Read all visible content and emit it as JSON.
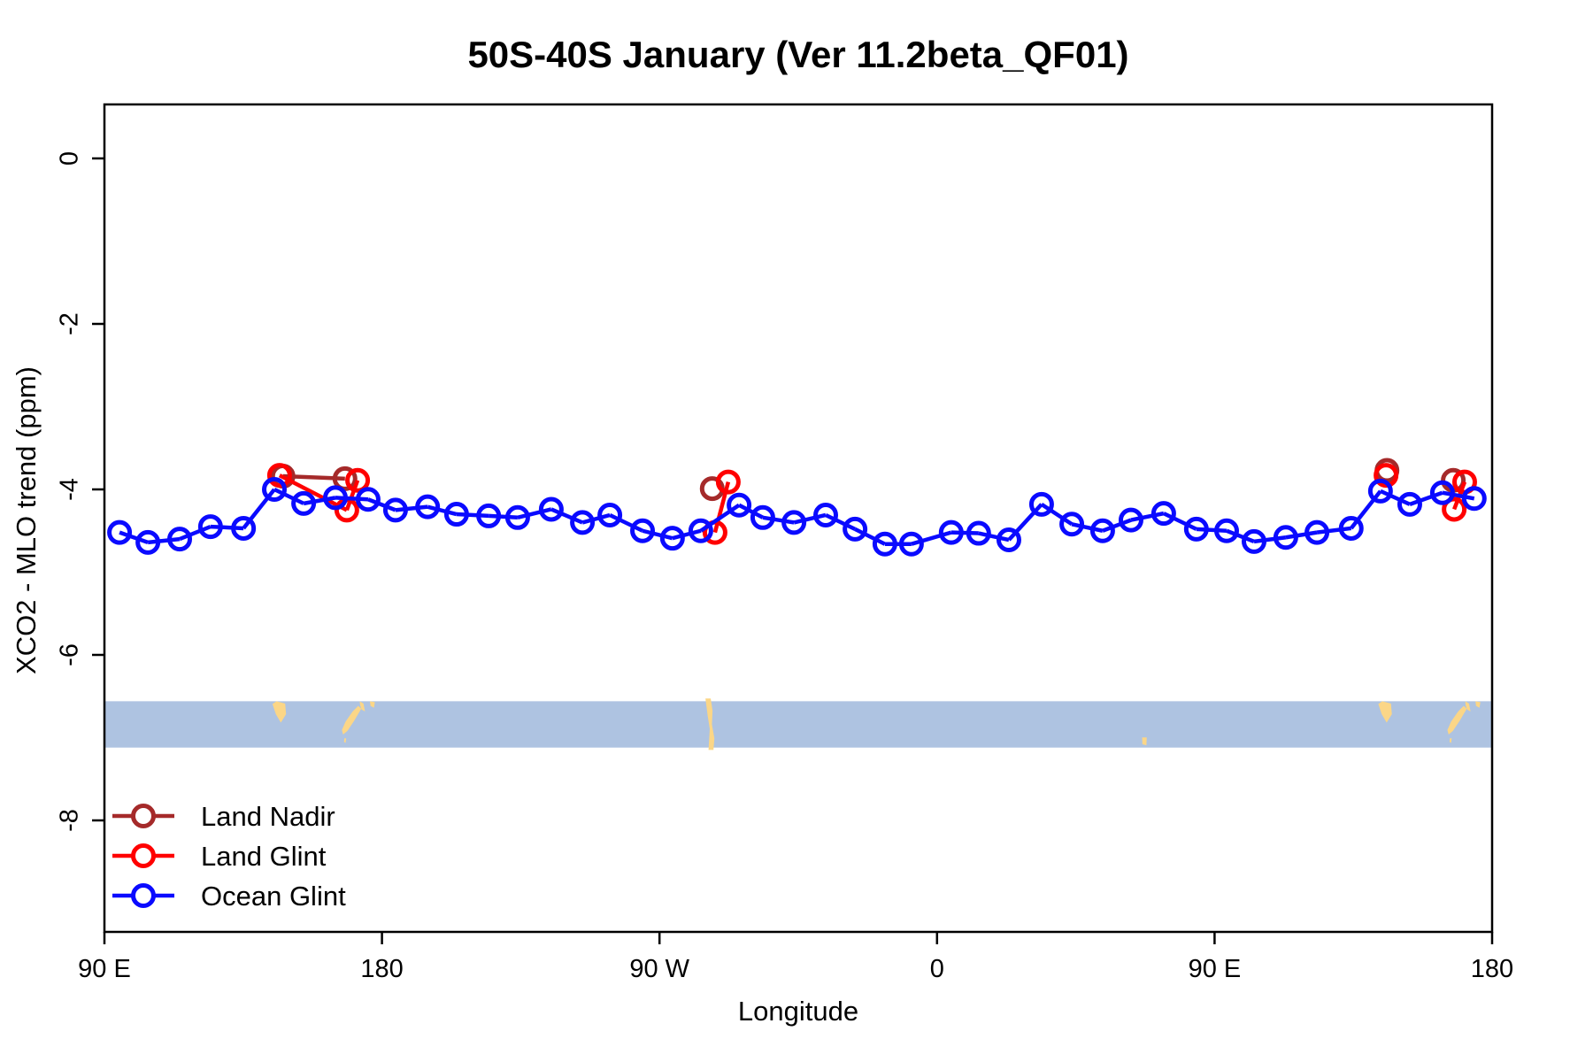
{
  "title": "50S-40S January (Ver 11.2beta_QF01)",
  "axis_labels": {
    "y": "XCO2 - MLO trend (ppm)",
    "x": "Longitude"
  },
  "colors": {
    "land_nadir": "#A52A2A",
    "land_glint": "#FF0000",
    "ocean_glint": "#0A0AFF",
    "map_sea": "#AEC3E1",
    "map_land": "#FBD687",
    "axis": "#000000"
  },
  "legend": [
    {
      "label": "Land Nadir",
      "series": "land_nadir"
    },
    {
      "label": "Land Glint",
      "series": "land_glint"
    },
    {
      "label": "Ocean Glint",
      "series": "ocean_glint"
    }
  ],
  "chart_data": {
    "type": "line",
    "title": "50S-40S January (Ver 11.2beta_QF01)",
    "xlabel": "Longitude",
    "ylabel": "XCO2 - MLO trend (ppm)",
    "x_axis_note": "longitude traversed eastward starting at 90E; deg = degrees along axis (0=90E, 90=180, 180=90W, 270=0, 360=90E, 450=180)",
    "x_ticks": [
      {
        "label": "90 E",
        "deg": 0
      },
      {
        "label": "180",
        "deg": 90
      },
      {
        "label": "90 W",
        "deg": 180
      },
      {
        "label": "0",
        "deg": 270
      },
      {
        "label": "90 E",
        "deg": 360
      },
      {
        "label": "180",
        "deg": 450
      }
    ],
    "y_ticks": [
      0,
      -2,
      -4,
      -6,
      -8
    ],
    "x_range_deg": [
      0,
      450
    ],
    "y_range_ppm": [
      0.65,
      -9.35
    ],
    "grid": false,
    "legend_position": "bottom-left inside plot",
    "series": [
      {
        "name": "Land Nadir",
        "color_key": "land_nadir",
        "points_deg_ppm": [
          [
            57.9,
            -3.84
          ],
          [
            78.0,
            -3.87
          ],
          [
            197.1,
            -3.99
          ],
          [
            415.9,
            -3.77
          ],
          [
            437.4,
            -3.89
          ]
        ],
        "segments": [
          [
            0,
            1
          ]
        ]
      },
      {
        "name": "Land Glint",
        "color_key": "land_glint",
        "points_deg_ppm": [
          [
            56.8,
            -3.83
          ],
          [
            78.6,
            -4.25
          ],
          [
            82.1,
            -3.89
          ],
          [
            198.0,
            -4.52
          ],
          [
            202.3,
            -3.91
          ],
          [
            415.6,
            -3.83
          ],
          [
            437.7,
            -4.24
          ],
          [
            441.1,
            -3.91
          ]
        ],
        "segments": [
          [
            0,
            1
          ],
          [
            1,
            2
          ],
          [
            3,
            4
          ],
          [
            6,
            7
          ]
        ]
      },
      {
        "name": "Ocean Glint",
        "color_key": "ocean_glint",
        "points_deg_ppm": [
          [
            4.9,
            -4.52
          ],
          [
            14.1,
            -4.64
          ],
          [
            24.4,
            -4.6
          ],
          [
            34.4,
            -4.45
          ],
          [
            45.1,
            -4.47
          ],
          [
            55.1,
            -4.0
          ],
          [
            64.6,
            -4.17
          ],
          [
            74.9,
            -4.1
          ],
          [
            85.5,
            -4.12
          ],
          [
            94.4,
            -4.25
          ],
          [
            104.8,
            -4.21
          ],
          [
            114.2,
            -4.3
          ],
          [
            124.6,
            -4.32
          ],
          [
            134.0,
            -4.34
          ],
          [
            144.9,
            -4.24
          ],
          [
            155.0,
            -4.4
          ],
          [
            163.9,
            -4.31
          ],
          [
            174.5,
            -4.5
          ],
          [
            184.2,
            -4.59
          ],
          [
            193.4,
            -4.5
          ],
          [
            205.8,
            -4.19
          ],
          [
            213.5,
            -4.34
          ],
          [
            223.6,
            -4.4
          ],
          [
            233.9,
            -4.31
          ],
          [
            243.4,
            -4.48
          ],
          [
            253.1,
            -4.66
          ],
          [
            261.7,
            -4.66
          ],
          [
            274.6,
            -4.52
          ],
          [
            283.5,
            -4.53
          ],
          [
            293.3,
            -4.61
          ],
          [
            303.9,
            -4.18
          ],
          [
            313.7,
            -4.42
          ],
          [
            323.7,
            -4.5
          ],
          [
            332.9,
            -4.37
          ],
          [
            343.5,
            -4.29
          ],
          [
            354.1,
            -4.48
          ],
          [
            363.9,
            -4.5
          ],
          [
            372.8,
            -4.63
          ],
          [
            383.1,
            -4.58
          ],
          [
            393.2,
            -4.52
          ],
          [
            404.3,
            -4.47
          ],
          [
            413.8,
            -4.02
          ],
          [
            423.3,
            -4.18
          ],
          [
            433.9,
            -4.04
          ],
          [
            444.2,
            -4.11
          ]
        ],
        "segments": "consecutive"
      }
    ],
    "map_band": {
      "description": "world coastline strip for the 50S-40S latitude band drawn across the plot",
      "y_top_ppm": -6.56,
      "y_bottom_ppm": -7.12,
      "features": [
        {
          "name": "tasmania",
          "poly": [
            [
              54.5,
              0.06
            ],
            [
              55.8,
              0.0
            ],
            [
              58.6,
              0.05
            ],
            [
              58.9,
              0.28
            ],
            [
              57.2,
              0.46
            ],
            [
              55.6,
              0.28
            ]
          ]
        },
        {
          "name": "new-zealand-south",
          "poly": [
            [
              77.0,
              0.62
            ],
            [
              78.2,
              0.44
            ],
            [
              80.5,
              0.22
            ],
            [
              82.3,
              0.1
            ],
            [
              83.3,
              0.16
            ],
            [
              81.0,
              0.42
            ],
            [
              78.8,
              0.64
            ],
            [
              77.4,
              0.72
            ]
          ]
        },
        {
          "name": "new-zealand-north",
          "poly": [
            [
              82.8,
              0.0
            ],
            [
              84.0,
              0.05
            ],
            [
              84.5,
              0.22
            ],
            [
              83.4,
              0.18
            ],
            [
              82.9,
              0.08
            ]
          ]
        },
        {
          "name": "new-zealand-dot",
          "poly": [
            [
              77.8,
              0.8
            ],
            [
              78.4,
              0.8
            ],
            [
              78.2,
              0.9
            ],
            [
              77.7,
              0.88
            ]
          ]
        },
        {
          "name": "new-zealand-east",
          "poly": [
            [
              86.1,
              0.0
            ],
            [
              87.7,
              0.02
            ],
            [
              87.4,
              0.14
            ],
            [
              86.3,
              0.1
            ]
          ]
        },
        {
          "name": "south-america-chile",
          "poly": [
            [
              194.9,
              -0.06
            ],
            [
              196.6,
              -0.06
            ],
            [
              197.2,
              0.2
            ],
            [
              197.0,
              0.5
            ],
            [
              197.8,
              0.8
            ],
            [
              197.5,
              1.05
            ],
            [
              195.9,
              1.05
            ],
            [
              196.3,
              0.6
            ],
            [
              195.6,
              0.3
            ]
          ]
        },
        {
          "name": "kerguelen",
          "poly": [
            [
              336.5,
              0.78
            ],
            [
              338.0,
              0.78
            ],
            [
              337.9,
              0.95
            ],
            [
              336.6,
              0.93
            ]
          ]
        },
        {
          "name": "tasmania-2",
          "poly": [
            [
              413.1,
              0.06
            ],
            [
              414.4,
              0.0
            ],
            [
              417.2,
              0.05
            ],
            [
              417.5,
              0.28
            ],
            [
              415.8,
              0.46
            ],
            [
              414.2,
              0.28
            ]
          ]
        },
        {
          "name": "new-zealand-south-2",
          "poly": [
            [
              435.5,
              0.62
            ],
            [
              436.7,
              0.44
            ],
            [
              439.0,
              0.22
            ],
            [
              440.8,
              0.1
            ],
            [
              441.8,
              0.16
            ],
            [
              439.5,
              0.42
            ],
            [
              437.3,
              0.64
            ],
            [
              435.9,
              0.72
            ]
          ]
        },
        {
          "name": "new-zealand-north-2",
          "poly": [
            [
              441.3,
              0.0
            ],
            [
              442.5,
              0.05
            ],
            [
              443.0,
              0.22
            ],
            [
              441.9,
              0.18
            ],
            [
              441.4,
              0.08
            ]
          ]
        },
        {
          "name": "new-zealand-dot-2",
          "poly": [
            [
              436.3,
              0.8
            ],
            [
              436.9,
              0.8
            ],
            [
              436.7,
              0.9
            ],
            [
              436.2,
              0.88
            ]
          ]
        },
        {
          "name": "new-zealand-east-2",
          "poly": [
            [
              444.6,
              0.0
            ],
            [
              446.2,
              0.02
            ],
            [
              445.9,
              0.14
            ],
            [
              444.8,
              0.1
            ]
          ]
        }
      ]
    }
  }
}
